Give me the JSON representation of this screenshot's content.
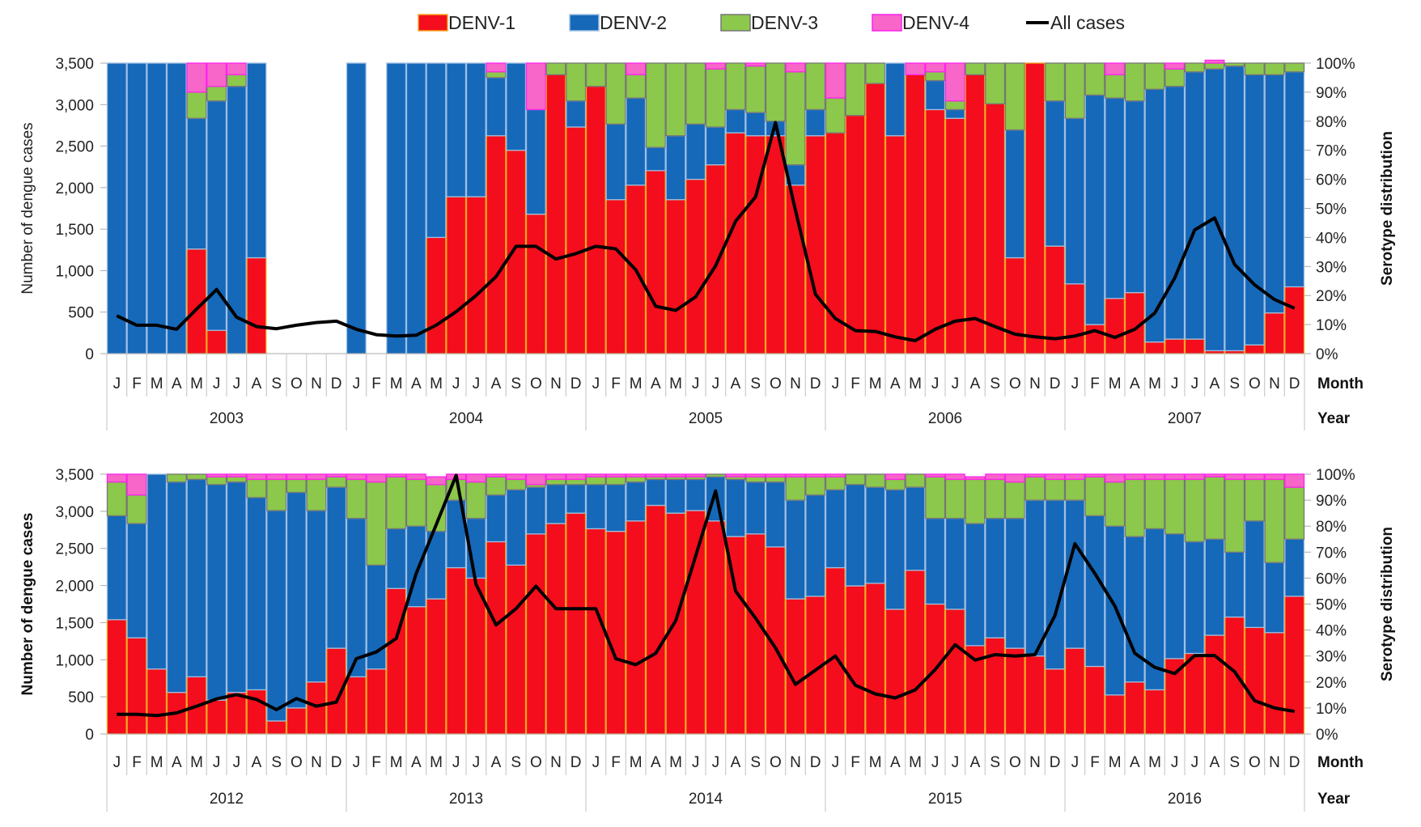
{
  "legend": {
    "items": [
      {
        "label": "DENV-1",
        "color": "#f40d1c",
        "border": "#f5a623",
        "kind": "box"
      },
      {
        "label": "DENV-2",
        "color": "#1668b9",
        "border": "#9fbfe3",
        "kind": "box"
      },
      {
        "label": "DENV-3",
        "color": "#8cc84b",
        "border": "#777777",
        "kind": "box"
      },
      {
        "label": "DENV-4",
        "color": "#f766c8",
        "border": "#ff22ee",
        "kind": "box"
      },
      {
        "label": "All cases",
        "color": "#000000",
        "kind": "line"
      }
    ]
  },
  "axis_labels": {
    "month_row": "Month",
    "year_row": "Year",
    "months": [
      "J",
      "F",
      "M",
      "A",
      "M",
      "J",
      "J",
      "A",
      "S",
      "O",
      "N",
      "D"
    ]
  },
  "chart_data": [
    {
      "type": "bar",
      "subtype": "stacked-100-percent-with-line",
      "title": "",
      "ylabel": "Number of dengue cases",
      "y2label": "Serotype distribution",
      "xlabel": "Month / Year",
      "ylim": [
        0,
        3500
      ],
      "y2lim": [
        0,
        100
      ],
      "yticks": [
        "0",
        "500",
        "1,000",
        "1,500",
        "2,000",
        "2,500",
        "3,000",
        "3,500"
      ],
      "y2ticks": [
        "0%",
        "10%",
        "20%",
        "30%",
        "40%",
        "50%",
        "60%",
        "70%",
        "80%",
        "90%",
        "100%"
      ],
      "years": [
        "2003",
        "2004",
        "2005",
        "2006",
        "2007"
      ],
      "legend_position": "top",
      "series": [
        {
          "name": "DENV-1",
          "unit": "percent",
          "values": [
            0,
            0,
            0,
            0,
            36,
            8,
            0,
            33,
            null,
            null,
            null,
            null,
            0,
            null,
            0,
            0,
            40,
            54,
            54,
            75,
            70,
            48,
            96,
            78,
            92,
            53,
            58,
            63,
            53,
            60,
            65,
            76,
            75,
            75,
            58,
            75,
            76,
            82,
            93,
            75,
            96,
            84,
            81,
            96,
            86,
            33,
            100,
            37,
            24,
            10,
            19,
            21,
            4,
            5,
            5,
            1,
            1,
            3,
            14,
            23
          ]
        },
        {
          "name": "DENV-2",
          "unit": "percent",
          "values": [
            100,
            100,
            100,
            100,
            45,
            79,
            92,
            67,
            null,
            null,
            null,
            null,
            100,
            null,
            100,
            100,
            60,
            46,
            46,
            20,
            30,
            36,
            0,
            9,
            0,
            26,
            30,
            8,
            22,
            19,
            13,
            8,
            8,
            5,
            7,
            9,
            0,
            0,
            0,
            25,
            0,
            10,
            3,
            0,
            0,
            44,
            0,
            50,
            57,
            79,
            69,
            66,
            87,
            87,
            92,
            97,
            98,
            93,
            82,
            74
          ]
        },
        {
          "name": "DENV-3",
          "unit": "percent",
          "values": [
            0,
            0,
            0,
            0,
            9,
            5,
            4,
            0,
            null,
            null,
            null,
            null,
            0,
            null,
            0,
            0,
            0,
            0,
            0,
            2,
            0,
            0,
            4,
            13,
            8,
            21,
            8,
            29,
            25,
            21,
            20,
            16,
            16,
            20,
            32,
            16,
            12,
            18,
            7,
            0,
            0,
            3,
            3,
            4,
            14,
            23,
            0,
            13,
            19,
            11,
            8,
            13,
            9,
            6,
            3,
            2,
            1,
            4,
            4,
            3
          ]
        },
        {
          "name": "DENV-4",
          "unit": "percent",
          "values": [
            0,
            0,
            0,
            0,
            10,
            8,
            4,
            0,
            null,
            null,
            null,
            null,
            0,
            null,
            0,
            0,
            0,
            0,
            0,
            3,
            0,
            16,
            0,
            0,
            0,
            0,
            4,
            0,
            0,
            0,
            2,
            0,
            1,
            0,
            3,
            0,
            12,
            0,
            0,
            0,
            4,
            3,
            13,
            0,
            0,
            0,
            0,
            0,
            0,
            0,
            4,
            0,
            0,
            2,
            0,
            1,
            0,
            0,
            0,
            0
          ]
        },
        {
          "name": "All cases",
          "unit": "cases",
          "values": [
            456,
            342,
            342,
            293,
            537,
            772,
            440,
            326,
            300,
            342,
            374,
            391,
            293,
            228,
            212,
            221,
            342,
            505,
            700,
            928,
            1293,
            1293,
            1140,
            1205,
            1293,
            1263,
            1009,
            570,
            521,
            684,
            1058,
            1595,
            1888,
            2783,
            1726,
            716,
            423,
            277,
            267,
            202,
            156,
            293,
            391,
            423,
            326,
            234,
            202,
            179,
            212,
            277,
            195,
            293,
            488,
            912,
            1491,
            1634,
            1074,
            830,
            651,
            547
          ]
        }
      ]
    },
    {
      "type": "bar",
      "subtype": "stacked-100-percent-with-line",
      "title": "",
      "ylabel": "Number of dengue cases",
      "y2label": "Serotype distribution",
      "xlabel": "Month / Year",
      "ylim": [
        0,
        3500
      ],
      "y2lim": [
        0,
        100
      ],
      "yticks": [
        "0",
        "500",
        "1,000",
        "1,500",
        "2,000",
        "2,500",
        "3,000",
        "3,500"
      ],
      "y2ticks": [
        "0%",
        "10%",
        "20%",
        "30%",
        "40%",
        "50%",
        "60%",
        "70%",
        "80%",
        "90%",
        "100%"
      ],
      "years": [
        "2012",
        "2013",
        "2014",
        "2015",
        "2016"
      ],
      "legend_position": "top",
      "series": [
        {
          "name": "DENV-1",
          "unit": "percent",
          "values": [
            44,
            37,
            25,
            16,
            22,
            13,
            16,
            17,
            5,
            10,
            20,
            33,
            22,
            25,
            56,
            49,
            52,
            64,
            60,
            74,
            65,
            77,
            81,
            85,
            79,
            78,
            82,
            88,
            85,
            86,
            82,
            76,
            77,
            72,
            52,
            53,
            64,
            57,
            58,
            48,
            63,
            50,
            48,
            34,
            37,
            33,
            30,
            25,
            33,
            26,
            15,
            20,
            17,
            29,
            31,
            38,
            45,
            41,
            39,
            53
          ]
        },
        {
          "name": "DENV-2",
          "unit": "percent",
          "values": [
            40,
            44,
            75,
            81,
            76,
            83,
            81,
            74,
            81,
            83,
            66,
            62,
            61,
            40,
            23,
            31,
            26,
            26,
            23,
            18,
            29,
            18,
            15,
            11,
            17,
            18,
            15,
            10,
            13,
            12,
            17,
            22,
            20,
            25,
            38,
            39,
            30,
            39,
            37,
            46,
            32,
            33,
            35,
            47,
            46,
            50,
            60,
            65,
            57,
            58,
            65,
            56,
            62,
            48,
            43,
            37,
            25,
            41,
            27,
            22
          ]
        },
        {
          "name": "DENV-3",
          "unit": "percent",
          "values": [
            13,
            11,
            0,
            3,
            2,
            3,
            2,
            7,
            12,
            5,
            12,
            4,
            15,
            32,
            20,
            18,
            18,
            8,
            14,
            7,
            4,
            1,
            2,
            2,
            3,
            3,
            2,
            1,
            1,
            1,
            1,
            1,
            2,
            2,
            9,
            7,
            5,
            4,
            5,
            4,
            5,
            16,
            15,
            17,
            15,
            14,
            9,
            8,
            8,
            15,
            17,
            22,
            19,
            21,
            24,
            24,
            28,
            16,
            32,
            20
          ]
        },
        {
          "name": "DENV-4",
          "unit": "percent",
          "values": [
            3,
            8,
            0,
            0,
            0,
            1,
            1,
            2,
            2,
            2,
            2,
            1,
            2,
            3,
            1,
            2,
            3,
            2,
            3,
            1,
            2,
            4,
            2,
            2,
            1,
            1,
            1,
            1,
            1,
            1,
            0,
            1,
            1,
            1,
            1,
            1,
            1,
            0,
            0,
            2,
            0,
            1,
            2,
            1,
            2,
            3,
            1,
            2,
            2,
            1,
            3,
            2,
            2,
            2,
            2,
            1,
            2,
            2,
            2,
            5
          ]
        },
        {
          "name": "All cases",
          "unit": "cases",
          "values": [
            265,
            265,
            247,
            283,
            374,
            472,
            530,
            465,
            327,
            476,
            374,
            429,
            1014,
            1105,
            1287,
            2162,
            2818,
            3485,
            2016,
            1469,
            1688,
            1991,
            1688,
            1688,
            1688,
            1014,
            933,
            1087,
            1524,
            2399,
            3274,
            1925,
            1560,
            1159,
            667,
            860,
            1050,
            656,
            540,
            485,
            594,
            868,
            1203,
            995,
            1068,
            1050,
            1068,
            1597,
            2563,
            2162,
            1724,
            1087,
            897,
            813,
            1057,
            1057,
            839,
            448,
            350,
            303
          ]
        }
      ]
    }
  ]
}
